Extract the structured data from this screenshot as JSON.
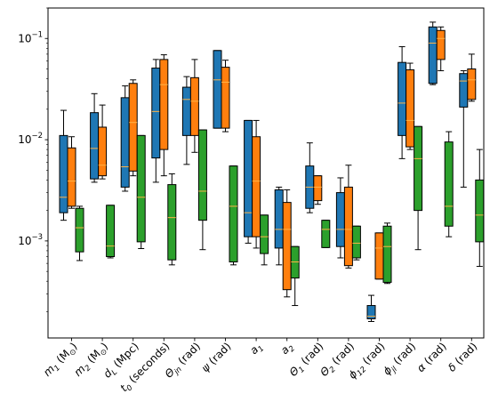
{
  "chart_data": {
    "type": "box",
    "yscale": "log",
    "ylim": [
      0.00011,
      0.2
    ],
    "y_major_ticks": [
      {
        "value": 0.001,
        "base": "10",
        "exp": "−3"
      },
      {
        "value": 0.01,
        "base": "10",
        "exp": "−2"
      },
      {
        "value": 0.1,
        "base": "10",
        "exp": "−1"
      }
    ],
    "categories": [
      {
        "main": "m",
        "sub": "1",
        "unit_pre": " (M",
        "unit_sub": "⊙",
        "unit_post": ")"
      },
      {
        "main": "m",
        "sub": "2",
        "unit_pre": " (M",
        "unit_sub": "⊙",
        "unit_post": ")"
      },
      {
        "main": "d",
        "sub": "L",
        "unit_pre": " (Mpc)",
        "unit_sub": "",
        "unit_post": ""
      },
      {
        "main": "t",
        "sub": "0",
        "unit_pre": " (seconds)",
        "unit_sub": "",
        "unit_post": ""
      },
      {
        "main": "Θ",
        "sub": "jn",
        "unit_pre": " (rad)",
        "unit_sub": "",
        "unit_post": ""
      },
      {
        "main": "ψ",
        "sub": "",
        "unit_pre": " (rad)",
        "unit_sub": "",
        "unit_post": ""
      },
      {
        "main": "a",
        "sub": "1",
        "unit_pre": "",
        "unit_sub": "",
        "unit_post": ""
      },
      {
        "main": "a",
        "sub": "2",
        "unit_pre": "",
        "unit_sub": "",
        "unit_post": ""
      },
      {
        "main": "Θ",
        "sub": "1",
        "unit_pre": " (rad)",
        "unit_sub": "",
        "unit_post": ""
      },
      {
        "main": "Θ",
        "sub": "2",
        "unit_pre": " (rad)",
        "unit_sub": "",
        "unit_post": ""
      },
      {
        "main": "ϕ",
        "sub": "12",
        "unit_pre": " (rad)",
        "unit_sub": "",
        "unit_post": ""
      },
      {
        "main": "ϕ",
        "sub": "jl",
        "unit_pre": " (rad)",
        "unit_sub": "",
        "unit_post": ""
      },
      {
        "main": "α",
        "sub": "",
        "unit_pre": " (rad)",
        "unit_sub": "",
        "unit_post": ""
      },
      {
        "main": "δ",
        "sub": "",
        "unit_pre": " (rad)",
        "unit_sub": "",
        "unit_post": ""
      }
    ],
    "series": [
      {
        "color": "#1f77b4",
        "boxes": [
          {
            "wlo": 0.0016,
            "q1": 0.0019,
            "med": 0.0027,
            "q3": 0.011,
            "whi": 0.0195
          },
          {
            "wlo": 0.0038,
            "q1": 0.0041,
            "med": 0.0082,
            "q3": 0.0185,
            "whi": 0.0285
          },
          {
            "wlo": 0.0031,
            "q1": 0.0034,
            "med": 0.0054,
            "q3": 0.026,
            "whi": 0.034
          },
          {
            "wlo": 0.0038,
            "q1": 0.0066,
            "med": 0.019,
            "q3": 0.051,
            "whi": 0.062
          },
          {
            "wlo": 0.0057,
            "q1": 0.011,
            "med": 0.025,
            "q3": 0.033,
            "whi": 0.042
          },
          {
            "wlo": 0.013,
            "q1": 0.013,
            "med": 0.039,
            "q3": 0.076,
            "whi": 0.076
          },
          {
            "wlo": 0.00095,
            "q1": 0.0011,
            "med": 0.0019,
            "q3": 0.0155,
            "whi": 0.0155
          },
          {
            "wlo": 0.00058,
            "q1": 0.00085,
            "med": 0.0013,
            "q3": 0.0032,
            "whi": 0.0034
          },
          {
            "wlo": 0.0019,
            "q1": 0.0021,
            "med": 0.0034,
            "q3": 0.0055,
            "whi": 0.0093
          },
          {
            "wlo": 0.00068,
            "q1": 0.00088,
            "med": 0.0013,
            "q3": 0.003,
            "whi": 0.0042
          },
          {
            "wlo": 0.00016,
            "q1": 0.00017,
            "med": 0.00018,
            "q3": 0.00023,
            "whi": 0.00029
          },
          {
            "wlo": 0.0065,
            "q1": 0.011,
            "med": 0.023,
            "q3": 0.058,
            "whi": 0.083
          },
          {
            "wlo": 0.035,
            "q1": 0.036,
            "med": 0.09,
            "q3": 0.13,
            "whi": 0.145
          },
          {
            "wlo": 0.0034,
            "q1": 0.021,
            "med": 0.038,
            "q3": 0.045,
            "whi": 0.048
          }
        ]
      },
      {
        "color": "#ff7f0e",
        "boxes": [
          {
            "wlo": 0.0021,
            "q1": 0.0022,
            "med": 0.0039,
            "q3": 0.0083,
            "whi": 0.0107
          },
          {
            "wlo": 0.0041,
            "q1": 0.0044,
            "med": 0.0056,
            "q3": 0.0133,
            "whi": 0.022
          },
          {
            "wlo": 0.0044,
            "q1": 0.0049,
            "med": 0.0148,
            "q3": 0.036,
            "whi": 0.039
          },
          {
            "wlo": 0.0044,
            "q1": 0.008,
            "med": 0.035,
            "q3": 0.062,
            "whi": 0.069
          },
          {
            "wlo": 0.0075,
            "q1": 0.011,
            "med": 0.024,
            "q3": 0.041,
            "whi": 0.062
          },
          {
            "wlo": 0.012,
            "q1": 0.013,
            "med": 0.037,
            "q3": 0.052,
            "whi": 0.061
          },
          {
            "wlo": 0.00085,
            "q1": 0.0011,
            "med": 0.0039,
            "q3": 0.0107,
            "whi": 0.0155
          },
          {
            "wlo": 0.00028,
            "q1": 0.00033,
            "med": 0.0013,
            "q3": 0.0024,
            "whi": 0.0032
          },
          {
            "wlo": 0.0023,
            "q1": 0.0025,
            "med": 0.0034,
            "q3": 0.0044,
            "whi": 0.0044
          },
          {
            "wlo": 0.00054,
            "q1": 0.00057,
            "med": 0.0013,
            "q3": 0.0034,
            "whi": 0.0056
          },
          {
            "wlo": 0.00042,
            "q1": 0.00042,
            "med": 0.00085,
            "q3": 0.0012,
            "whi": 0.0012
          },
          {
            "wlo": 0.008,
            "q1": 0.0085,
            "med": 0.0155,
            "q3": 0.049,
            "whi": 0.057
          },
          {
            "wlo": 0.048,
            "q1": 0.062,
            "med": 0.1,
            "q3": 0.12,
            "whi": 0.13
          },
          {
            "wlo": 0.024,
            "q1": 0.025,
            "med": 0.039,
            "q3": 0.05,
            "whi": 0.07
          }
        ]
      },
      {
        "color": "#2ca02c",
        "boxes": [
          {
            "wlo": 0.00064,
            "q1": 0.00078,
            "med": 0.00135,
            "q3": 0.0021,
            "whi": 0.0022
          },
          {
            "wlo": 0.00068,
            "q1": 0.0007,
            "med": 0.00089,
            "q3": 0.00225,
            "whi": 0.00225
          },
          {
            "wlo": 0.00084,
            "q1": 0.00098,
            "med": 0.0027,
            "q3": 0.011,
            "whi": 0.011
          },
          {
            "wlo": 0.00058,
            "q1": 0.00065,
            "med": 0.0017,
            "q3": 0.0036,
            "whi": 0.0046
          },
          {
            "wlo": 0.00082,
            "q1": 0.0016,
            "med": 0.0031,
            "q3": 0.0125,
            "whi": 0.0125
          },
          {
            "wlo": 0.00058,
            "q1": 0.00062,
            "med": 0.0022,
            "q3": 0.0055,
            "whi": 0.0055
          },
          {
            "wlo": 0.00058,
            "q1": 0.00075,
            "med": 0.0011,
            "q3": 0.0018,
            "whi": 0.0018
          },
          {
            "wlo": 0.00023,
            "q1": 0.00043,
            "med": 0.00062,
            "q3": 0.00088,
            "whi": 0.00088
          },
          {
            "wlo": 0.00086,
            "q1": 0.00086,
            "med": 0.0013,
            "q3": 0.0016,
            "whi": 0.0016
          },
          {
            "wlo": 0.00065,
            "q1": 0.00068,
            "med": 0.00095,
            "q3": 0.0014,
            "whi": 0.0014
          },
          {
            "wlo": 0.00038,
            "q1": 0.00039,
            "med": 0.00088,
            "q3": 0.0014,
            "whi": 0.0015
          },
          {
            "wlo": 0.00082,
            "q1": 0.002,
            "med": 0.0065,
            "q3": 0.0135,
            "whi": 0.0135
          },
          {
            "wlo": 0.0011,
            "q1": 0.0014,
            "med": 0.0022,
            "q3": 0.0095,
            "whi": 0.012
          },
          {
            "wlo": 0.00056,
            "q1": 0.00098,
            "med": 0.0018,
            "q3": 0.004,
            "whi": 0.008
          }
        ]
      }
    ]
  }
}
